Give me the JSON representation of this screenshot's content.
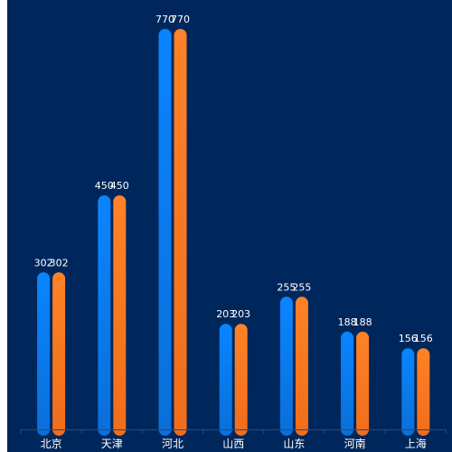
{
  "chart_data": {
    "type": "bar",
    "categories": [
      "北京",
      "天津",
      "河北",
      "山西",
      "山东",
      "河南",
      "上海"
    ],
    "series": [
      {
        "values": [
          302,
          450,
          770,
          203,
          255,
          188,
          156
        ],
        "color": "#0a7ef2"
      },
      {
        "values": [
          302,
          450,
          770,
          203,
          255,
          188,
          156
        ],
        "color": "#ff7a22"
      }
    ],
    "ylim": [
      0,
      800
    ],
    "grid": false,
    "legend": false,
    "background": "#00275c",
    "axis_color": "#2a4a78"
  }
}
